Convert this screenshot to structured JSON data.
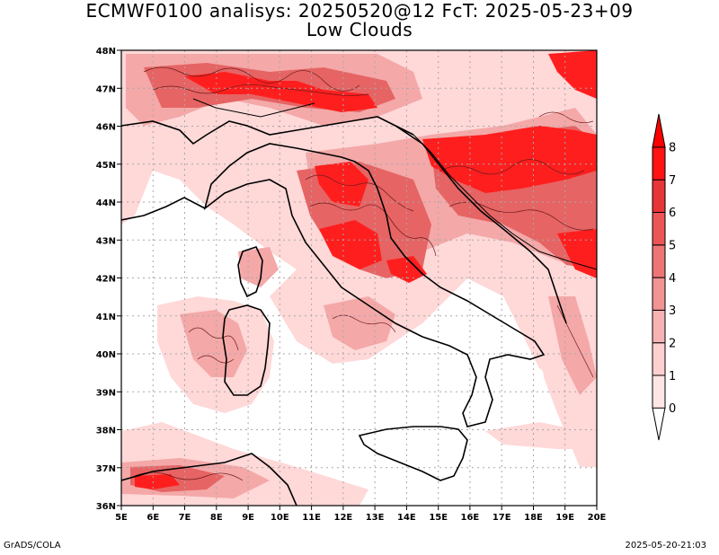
{
  "title": "ECMWF0100 analisys: 20250520@12 FcT: 2025-05-23+09",
  "subtitle": "Low Clouds",
  "footer_left": "GrADS/COLA",
  "footer_right": "2025-05-20-21:03",
  "lon_labels": [
    "5E",
    "6E",
    "7E",
    "8E",
    "9E",
    "10E",
    "11E",
    "12E",
    "13E",
    "14E",
    "15E",
    "16E",
    "17E",
    "18E",
    "19E",
    "20E"
  ],
  "lat_labels": [
    "48N",
    "47N",
    "46N",
    "45N",
    "44N",
    "43N",
    "42N",
    "41N",
    "40N",
    "39N",
    "38N",
    "37N",
    "36N"
  ],
  "colorbar": {
    "levels": [
      "0",
      "1",
      "2",
      "3",
      "4",
      "5",
      "6",
      "7",
      "8"
    ],
    "colors": [
      "#ffe6e6",
      "#ffd0d0",
      "#f7b3b3",
      "#f29494",
      "#ee7575",
      "#eb5555",
      "#e83535",
      "#ff1414",
      "#ff0000"
    ]
  },
  "map_colors": {
    "land_outline": "#000000",
    "grid": "#a0a0a0",
    "cloud_light": "#ffd6d6",
    "cloud_mid": "#f4a5a5",
    "cloud_heavy": "#e95a5a",
    "cloud_max": "#ff1a1a"
  }
}
